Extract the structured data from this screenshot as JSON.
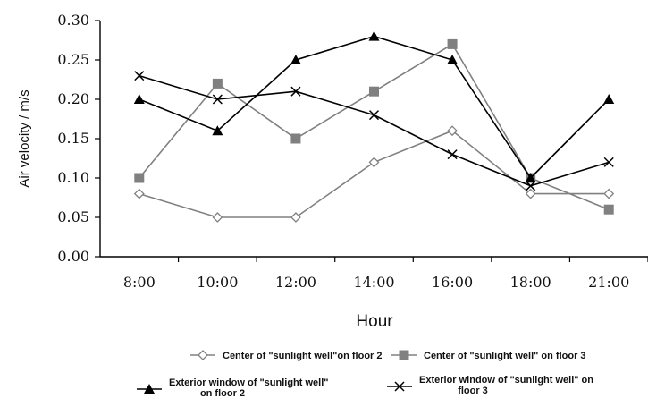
{
  "chart_data": {
    "type": "line",
    "title": "",
    "xlabel": "Hour",
    "ylabel": "Air velocity / m/s",
    "categories": [
      "8:00",
      "10:00",
      "12:00",
      "14:00",
      "16:00",
      "18:00",
      "21:00"
    ],
    "ylim": [
      0,
      0.3
    ],
    "yticks": [
      "0.00",
      "0.05",
      "0.10",
      "0.15",
      "0.20",
      "0.25",
      "0.30"
    ],
    "grid": false,
    "legend_position": "bottom",
    "series": [
      {
        "name": "Center of \"sunlight well\"on floor 2",
        "legend_lines": [
          "Center of \"sunlight well\"on floor 2"
        ],
        "marker": "open-diamond",
        "color": "#808080",
        "values": [
          0.08,
          0.05,
          0.05,
          0.12,
          0.16,
          0.08,
          0.08
        ]
      },
      {
        "name": "Center of \"sunlight well\" on floor 3",
        "legend_lines": [
          "Center of \"sunlight well\" on floor 3"
        ],
        "marker": "filled-square",
        "color": "#808080",
        "values": [
          0.1,
          0.22,
          0.15,
          0.21,
          0.27,
          0.1,
          0.06
        ]
      },
      {
        "name": "Exterior window of \"sunlight well\" on floor 2",
        "legend_lines": [
          "Exterior window of \"sunlight well\"",
          "on floor 2"
        ],
        "marker": "filled-triangle",
        "color": "#000000",
        "values": [
          0.2,
          0.16,
          0.25,
          0.28,
          0.25,
          0.1,
          0.2
        ]
      },
      {
        "name": "Exterior window of \"sunlight well\" on floor 3",
        "legend_lines": [
          "Exterior window of \"sunlight well\" on",
          "floor 3"
        ],
        "marker": "x-cross",
        "color": "#000000",
        "values": [
          0.23,
          0.2,
          0.21,
          0.18,
          0.13,
          0.09,
          0.12
        ]
      }
    ]
  }
}
